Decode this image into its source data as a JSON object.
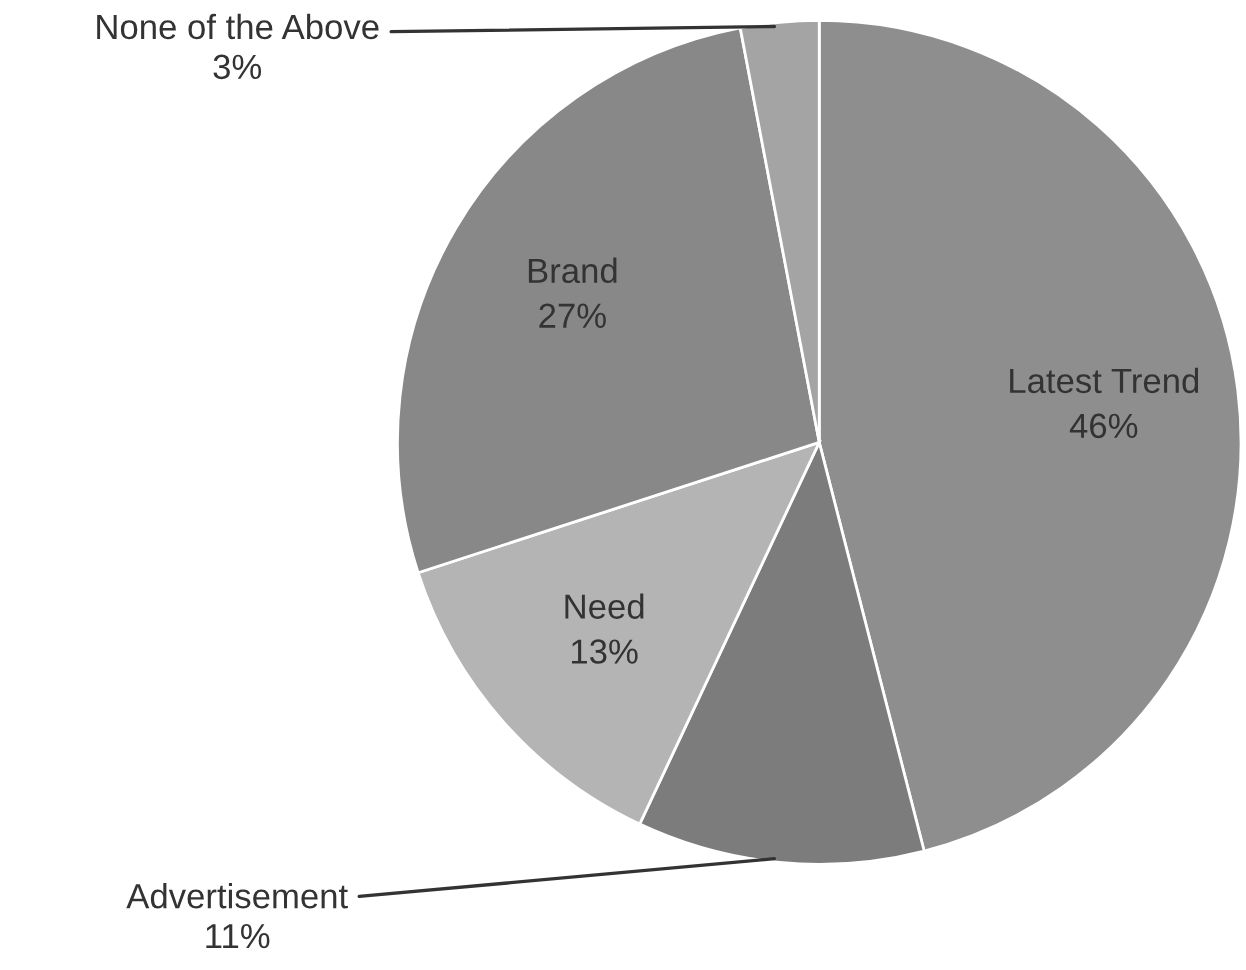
{
  "chart_data": {
    "type": "pie",
    "categories": [
      "Latest Trend",
      "Advertisement",
      "Need",
      "Brand",
      "None of the Above"
    ],
    "values": [
      46,
      11,
      13,
      27,
      3
    ],
    "value_labels": [
      "46%",
      "11%",
      "13%",
      "27%",
      "3%"
    ],
    "colors": [
      "#8e8e8e",
      "#7c7c7c",
      "#b4b4b4",
      "#888888",
      "#a4a4a4"
    ],
    "legend": false
  }
}
